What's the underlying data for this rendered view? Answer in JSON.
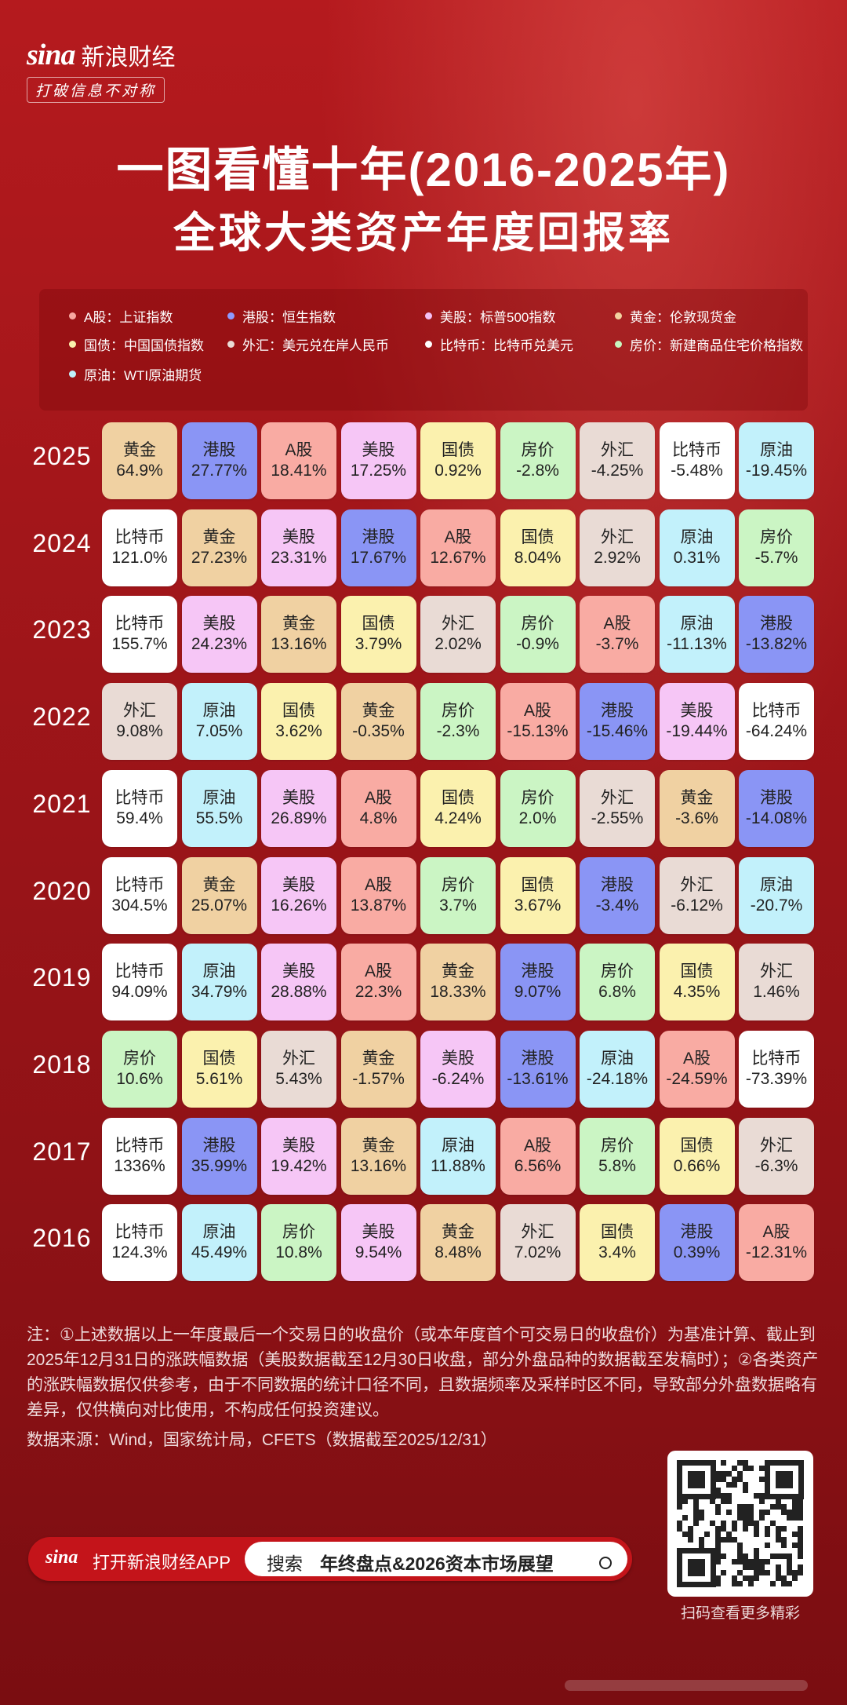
{
  "brand": {
    "logo": "sina",
    "name": "新浪财经",
    "slogan": "打破信息不对称"
  },
  "title": {
    "line1": "一图看懂十年(2016-2025年)",
    "line2": "全球大类资产年度回报率"
  },
  "legend": [
    {
      "label": "A股：上证指数",
      "color": "#f8a8a0"
    },
    {
      "label": "港股：恒生指数",
      "color": "#8e9aff"
    },
    {
      "label": "美股：标普500指数",
      "color": "#f4c0f4"
    },
    {
      "label": "黄金：伦敦现货金",
      "color": "#f2d2a0"
    },
    {
      "label": "国债：中国国债指数",
      "color": "#fbf2ae"
    },
    {
      "label": "外汇：美元兑在岸人民币",
      "color": "#eadcd6"
    },
    {
      "label": "比特币：比特币兑美元",
      "color": "#ffffff"
    },
    {
      "label": "房价：新建商品住宅价格指数",
      "color": "#c8f6c0"
    },
    {
      "label": "原油：WTI原油期货",
      "color": "#bff0fb"
    }
  ],
  "colors": {
    "A股": "#f9aba3",
    "港股": "#8a95f5",
    "美股": "#f6c6f6",
    "黄金": "#f0d1a2",
    "国债": "#fbf1ae",
    "外汇": "#e9dbd5",
    "比特币": "#ffffff",
    "房价": "#cbf5c4",
    "原油": "#c2f1fb"
  },
  "rows": [
    {
      "year": "2025",
      "cells": [
        {
          "name": "黄金",
          "value": "64.9%"
        },
        {
          "name": "港股",
          "value": "27.77%"
        },
        {
          "name": "A股",
          "value": "18.41%"
        },
        {
          "name": "美股",
          "value": "17.25%"
        },
        {
          "name": "国债",
          "value": "0.92%"
        },
        {
          "name": "房价",
          "value": "-2.8%"
        },
        {
          "name": "外汇",
          "value": "-4.25%"
        },
        {
          "name": "比特币",
          "value": "-5.48%"
        },
        {
          "name": "原油",
          "value": "-19.45%"
        }
      ]
    },
    {
      "year": "2024",
      "cells": [
        {
          "name": "比特币",
          "value": "121.0%"
        },
        {
          "name": "黄金",
          "value": "27.23%"
        },
        {
          "name": "美股",
          "value": "23.31%"
        },
        {
          "name": "港股",
          "value": "17.67%"
        },
        {
          "name": "A股",
          "value": "12.67%"
        },
        {
          "name": "国债",
          "value": "8.04%"
        },
        {
          "name": "外汇",
          "value": "2.92%"
        },
        {
          "name": "原油",
          "value": "0.31%"
        },
        {
          "name": "房价",
          "value": "-5.7%"
        }
      ]
    },
    {
      "year": "2023",
      "cells": [
        {
          "name": "比特币",
          "value": "155.7%"
        },
        {
          "name": "美股",
          "value": "24.23%"
        },
        {
          "name": "黄金",
          "value": "13.16%"
        },
        {
          "name": "国债",
          "value": "3.79%"
        },
        {
          "name": "外汇",
          "value": "2.02%"
        },
        {
          "name": "房价",
          "value": "-0.9%"
        },
        {
          "name": "A股",
          "value": "-3.7%"
        },
        {
          "name": "原油",
          "value": "-11.13%"
        },
        {
          "name": "港股",
          "value": "-13.82%"
        }
      ]
    },
    {
      "year": "2022",
      "cells": [
        {
          "name": "外汇",
          "value": "9.08%"
        },
        {
          "name": "原油",
          "value": "7.05%"
        },
        {
          "name": "国债",
          "value": "3.62%"
        },
        {
          "name": "黄金",
          "value": "-0.35%"
        },
        {
          "name": "房价",
          "value": "-2.3%"
        },
        {
          "name": "A股",
          "value": "-15.13%"
        },
        {
          "name": "港股",
          "value": "-15.46%"
        },
        {
          "name": "美股",
          "value": "-19.44%"
        },
        {
          "name": "比特币",
          "value": "-64.24%"
        }
      ]
    },
    {
      "year": "2021",
      "cells": [
        {
          "name": "比特币",
          "value": "59.4%"
        },
        {
          "name": "原油",
          "value": "55.5%"
        },
        {
          "name": "美股",
          "value": "26.89%"
        },
        {
          "name": "A股",
          "value": "4.8%"
        },
        {
          "name": "国债",
          "value": "4.24%"
        },
        {
          "name": "房价",
          "value": "2.0%"
        },
        {
          "name": "外汇",
          "value": "-2.55%"
        },
        {
          "name": "黄金",
          "value": "-3.6%"
        },
        {
          "name": "港股",
          "value": "-14.08%"
        }
      ]
    },
    {
      "year": "2020",
      "cells": [
        {
          "name": "比特币",
          "value": "304.5%"
        },
        {
          "name": "黄金",
          "value": "25.07%"
        },
        {
          "name": "美股",
          "value": "16.26%"
        },
        {
          "name": "A股",
          "value": "13.87%"
        },
        {
          "name": "房价",
          "value": "3.7%"
        },
        {
          "name": "国债",
          "value": "3.67%"
        },
        {
          "name": "港股",
          "value": "-3.4%"
        },
        {
          "name": "外汇",
          "value": "-6.12%"
        },
        {
          "name": "原油",
          "value": "-20.7%"
        }
      ]
    },
    {
      "year": "2019",
      "cells": [
        {
          "name": "比特币",
          "value": "94.09%"
        },
        {
          "name": "原油",
          "value": "34.79%"
        },
        {
          "name": "美股",
          "value": "28.88%"
        },
        {
          "name": "A股",
          "value": "22.3%"
        },
        {
          "name": "黄金",
          "value": "18.33%"
        },
        {
          "name": "港股",
          "value": "9.07%"
        },
        {
          "name": "房价",
          "value": "6.8%"
        },
        {
          "name": "国债",
          "value": "4.35%"
        },
        {
          "name": "外汇",
          "value": "1.46%"
        }
      ]
    },
    {
      "year": "2018",
      "cells": [
        {
          "name": "房价",
          "value": "10.6%"
        },
        {
          "name": "国债",
          "value": "5.61%"
        },
        {
          "name": "外汇",
          "value": "5.43%"
        },
        {
          "name": "黄金",
          "value": "-1.57%"
        },
        {
          "name": "美股",
          "value": "-6.24%"
        },
        {
          "name": "港股",
          "value": "-13.61%"
        },
        {
          "name": "原油",
          "value": "-24.18%"
        },
        {
          "name": "A股",
          "value": "-24.59%"
        },
        {
          "name": "比特币",
          "value": "-73.39%"
        }
      ]
    },
    {
      "year": "2017",
      "cells": [
        {
          "name": "比特币",
          "value": "1336%"
        },
        {
          "name": "港股",
          "value": "35.99%"
        },
        {
          "name": "美股",
          "value": "19.42%"
        },
        {
          "name": "黄金",
          "value": "13.16%"
        },
        {
          "name": "原油",
          "value": "11.88%"
        },
        {
          "name": "A股",
          "value": "6.56%"
        },
        {
          "name": "房价",
          "value": "5.8%"
        },
        {
          "name": "国债",
          "value": "0.66%"
        },
        {
          "name": "外汇",
          "value": "-6.3%"
        }
      ]
    },
    {
      "year": "2016",
      "cells": [
        {
          "name": "比特币",
          "value": "124.3%"
        },
        {
          "name": "原油",
          "value": "45.49%"
        },
        {
          "name": "房价",
          "value": "10.8%"
        },
        {
          "name": "美股",
          "value": "9.54%"
        },
        {
          "name": "黄金",
          "value": "8.48%"
        },
        {
          "name": "外汇",
          "value": "7.02%"
        },
        {
          "name": "国债",
          "value": "3.4%"
        },
        {
          "name": "港股",
          "value": "0.39%"
        },
        {
          "name": "A股",
          "value": "-12.31%"
        }
      ]
    }
  ],
  "note": "注：①上述数据以上一年度最后一个交易日的收盘价（或本年度首个可交易日的收盘价）为基准计算、截止到2025年12月31日的涨跌幅数据（美股数据截至12月30日收盘，部分外盘品种的数据截至发稿时）；②各类资产的涨跌幅数据仅供参考，由于不同数据的统计口径不同，且数据频率及采样时区不同，导致部分外盘数据略有差异，仅供横向对比使用，不构成任何投资建议。",
  "source": "数据来源：Wind，国家统计局，CFETS（数据截至2025/12/31）",
  "bottom_bar": {
    "logo": "sina",
    "app_label": "打开新浪财经APP",
    "search_label": "搜索",
    "search_keyword": "年终盘点&2026资本市场展望"
  },
  "qr_caption": "扫码查看更多精彩"
}
